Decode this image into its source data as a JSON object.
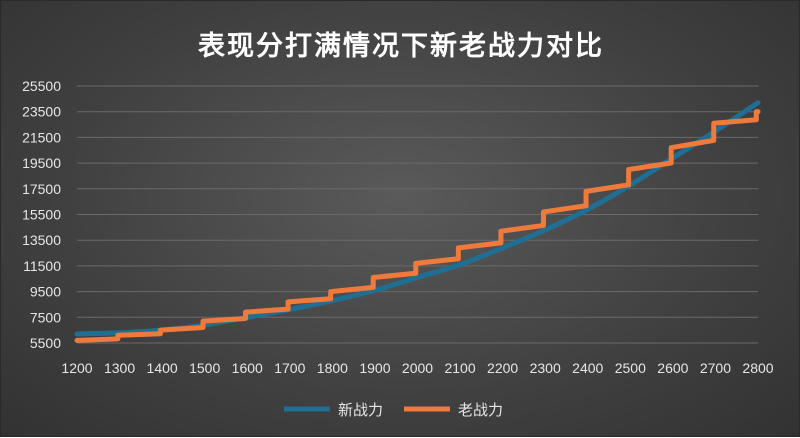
{
  "chart_data": {
    "type": "line",
    "title": "表现分打满情况下新老战力对比",
    "xlabel": "",
    "ylabel": "",
    "x_ticks": [
      "1200",
      "1300",
      "1400",
      "1500",
      "1600",
      "1700",
      "1800",
      "1900",
      "2000",
      "2100",
      "2200",
      "2300",
      "2400",
      "2500",
      "2600",
      "2700",
      "2800"
    ],
    "y_ticks": [
      "5500",
      "7500",
      "9500",
      "11500",
      "13500",
      "15500",
      "17500",
      "19500",
      "21500",
      "23500",
      "25500"
    ],
    "xlim": [
      1200,
      2800
    ],
    "ylim": [
      5500,
      25500
    ],
    "grid": true,
    "legend": "bottom",
    "series": [
      {
        "name": "新战力",
        "color": "#1f6f94",
        "style": "smooth",
        "x": [
          1200,
          1300,
          1400,
          1500,
          1600,
          1700,
          1800,
          1900,
          2000,
          2100,
          2200,
          2300,
          2400,
          2500,
          2600,
          2700,
          2800
        ],
        "y": [
          6200,
          6300,
          6500,
          6900,
          7500,
          8100,
          8800,
          9600,
          10600,
          11600,
          12900,
          14300,
          15900,
          17800,
          19900,
          22000,
          24200
        ]
      },
      {
        "name": "老战力",
        "color": "#f07a3c",
        "style": "step",
        "x": [
          1200,
          1300,
          1400,
          1500,
          1600,
          1700,
          1800,
          1900,
          2000,
          2100,
          2200,
          2300,
          2400,
          2500,
          2600,
          2700,
          2800
        ],
        "y": [
          5700,
          6100,
          6500,
          7200,
          7900,
          8700,
          9500,
          10600,
          11700,
          12900,
          14200,
          15700,
          17300,
          19000,
          20700,
          22600,
          23500
        ]
      }
    ]
  }
}
